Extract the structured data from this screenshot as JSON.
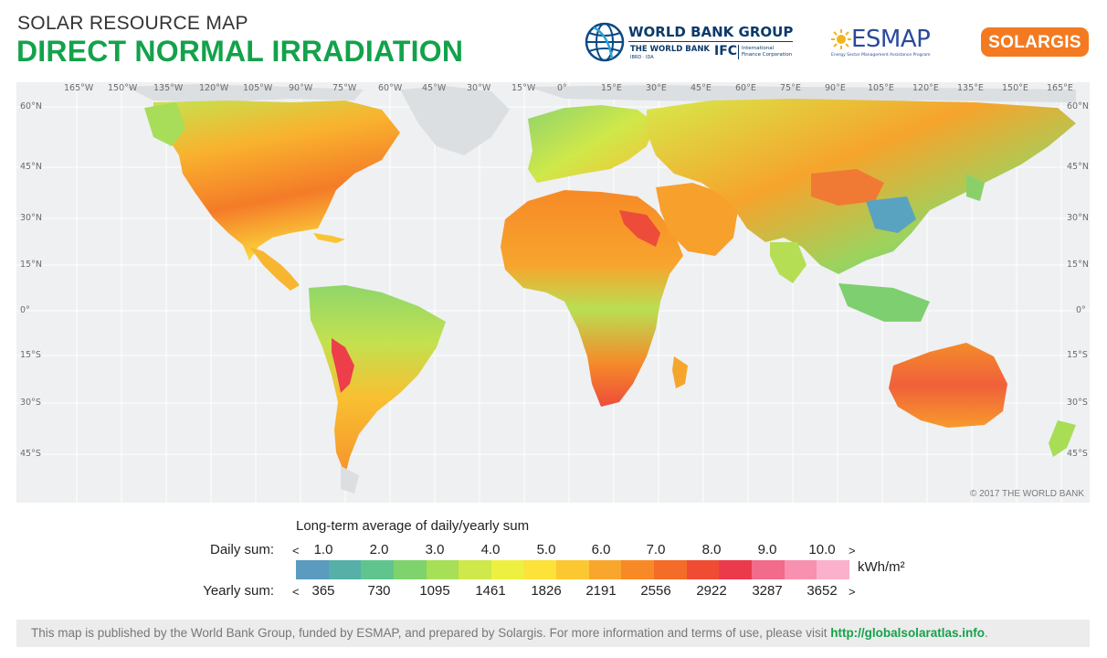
{
  "header": {
    "subtitle": "SOLAR RESOURCE MAP",
    "title": "DIRECT NORMAL IRRADIATION"
  },
  "logos": {
    "worldbank_group": "WORLD BANK GROUP",
    "worldbank": "THE WORLD BANK",
    "worldbank_sub": "IBRD · IDA",
    "ifc": "IFC",
    "ifc_sub1": "International",
    "ifc_sub2": "Finance Corporation",
    "esmap": "ESMAP",
    "esmap_sub": "Energy Sector Management Assistance Program",
    "solargis": "SOLARGIS"
  },
  "map": {
    "lon_labels": [
      "165°W",
      "150°W",
      "135°W",
      "120°W",
      "105°W",
      "90°W",
      "75°W",
      "60°W",
      "45°W",
      "30°W",
      "15°W",
      "0°",
      "15°E",
      "30°E",
      "45°E",
      "60°E",
      "75°E",
      "90°E",
      "105°E",
      "120°E",
      "135°E",
      "150°E",
      "165°E"
    ],
    "lat_labels": [
      "60°N",
      "45°N",
      "30°N",
      "15°N",
      "0°",
      "15°S",
      "30°S",
      "45°S"
    ],
    "copyright": "© 2017 THE WORLD BANK"
  },
  "legend": {
    "title": "Long-term average of daily/yearly sum",
    "daily_label": "Daily sum:",
    "yearly_label": "Yearly sum:",
    "lt": "<",
    "gt": ">",
    "unit": "kWh/m²",
    "daily_ticks": [
      "1.0",
      "2.0",
      "3.0",
      "4.0",
      "5.0",
      "6.0",
      "7.0",
      "8.0",
      "9.0",
      "10.0"
    ],
    "yearly_ticks": [
      "365",
      "730",
      "1095",
      "1461",
      "1826",
      "2191",
      "2556",
      "2922",
      "3287",
      "3652"
    ],
    "colors": [
      "#5b9bbf",
      "#56b0a8",
      "#5fc48e",
      "#7fd36c",
      "#a7df57",
      "#cfe84a",
      "#eef041",
      "#fde23a",
      "#fcc832",
      "#f9a62c",
      "#f78a27",
      "#f46c28",
      "#ef4c33",
      "#ec3a4d",
      "#f26b8a",
      "#f890b0",
      "#fbb0cc"
    ]
  },
  "footer": {
    "text": "This map is published by the World Bank Group, funded by ESMAP, and prepared by Solargis. For more information and terms of use, please visit ",
    "link": "http://globalsolaratlas.info",
    "end": "."
  }
}
